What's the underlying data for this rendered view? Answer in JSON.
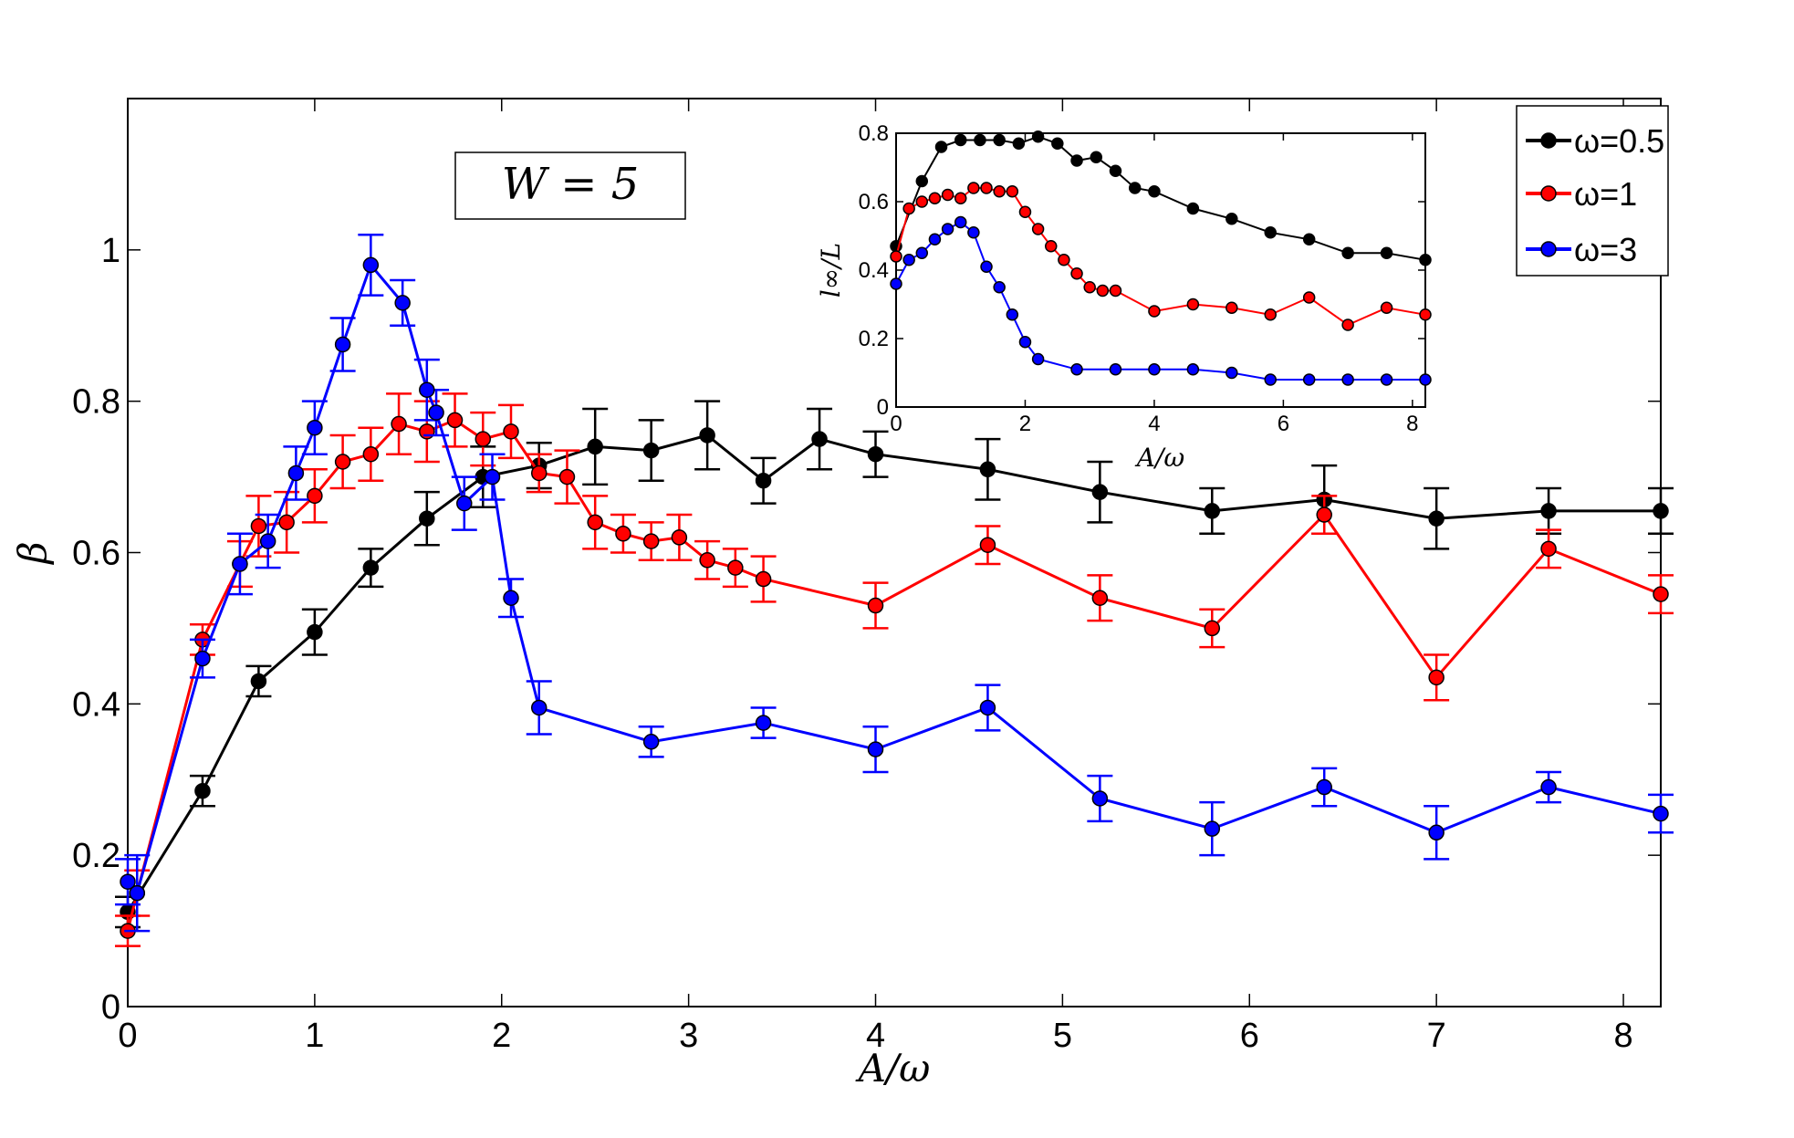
{
  "chart_data": [
    {
      "type": "line",
      "panel": "main",
      "xlabel": "A/ω",
      "ylabel": "β",
      "xlim": [
        0,
        8.2
      ],
      "ylim": [
        0,
        1.2
      ],
      "xticks": [
        0,
        1,
        2,
        3,
        4,
        5,
        6,
        7,
        8
      ],
      "yticks": [
        0,
        0.2,
        0.4,
        0.6,
        0.8,
        1
      ],
      "xtick_labels": [
        "0",
        "1",
        "2",
        "3",
        "4",
        "5",
        "6",
        "7",
        "8"
      ],
      "ytick_labels": [
        "0",
        "0.2",
        "0.4",
        "0.6",
        "0.8",
        "1"
      ],
      "annotation": "W = 5",
      "legend_position": "top-right",
      "series": [
        {
          "name": "ω=0.5",
          "color": "#000000",
          "x": [
            0,
            0.4,
            0.7,
            1.0,
            1.3,
            1.6,
            1.9,
            2.2,
            2.5,
            2.8,
            3.1,
            3.4,
            3.7,
            4.0,
            4.6,
            5.2,
            5.8,
            6.4,
            7.0,
            7.6,
            8.2
          ],
          "values": [
            0.125,
            0.285,
            0.43,
            0.495,
            0.58,
            0.645,
            0.7,
            0.715,
            0.74,
            0.735,
            0.755,
            0.695,
            0.75,
            0.73,
            0.71,
            0.68,
            0.655,
            0.67,
            0.645,
            0.655,
            0.655
          ],
          "errors": [
            0.02,
            0.02,
            0.02,
            0.03,
            0.025,
            0.035,
            0.04,
            0.03,
            0.05,
            0.04,
            0.045,
            0.03,
            0.04,
            0.03,
            0.04,
            0.04,
            0.03,
            0.045,
            0.04,
            0.03,
            0.03
          ]
        },
        {
          "name": "ω=1",
          "color": "#ff0000",
          "x": [
            0,
            0.05,
            0.4,
            0.6,
            0.7,
            0.85,
            1.0,
            1.15,
            1.3,
            1.45,
            1.6,
            1.75,
            1.9,
            2.05,
            2.2,
            2.35,
            2.5,
            2.65,
            2.8,
            2.95,
            3.1,
            3.25,
            3.4,
            4.0,
            4.6,
            5.2,
            5.8,
            6.4,
            7.0,
            7.6,
            8.2
          ],
          "values": [
            0.1,
            0.15,
            0.485,
            0.585,
            0.635,
            0.64,
            0.675,
            0.72,
            0.73,
            0.77,
            0.76,
            0.775,
            0.75,
            0.76,
            0.705,
            0.7,
            0.64,
            0.625,
            0.615,
            0.62,
            0.59,
            0.58,
            0.565,
            0.53,
            0.61,
            0.54,
            0.5,
            0.65,
            0.435,
            0.605,
            0.545
          ],
          "errors": [
            0.02,
            0.03,
            0.02,
            0.03,
            0.04,
            0.04,
            0.035,
            0.035,
            0.035,
            0.04,
            0.04,
            0.035,
            0.035,
            0.035,
            0.025,
            0.035,
            0.035,
            0.025,
            0.025,
            0.03,
            0.025,
            0.025,
            0.03,
            0.03,
            0.025,
            0.03,
            0.025,
            0.025,
            0.03,
            0.025,
            0.025
          ]
        },
        {
          "name": "ω=3",
          "color": "#0000ff",
          "x": [
            0,
            0.05,
            0.4,
            0.6,
            0.75,
            0.9,
            1.0,
            1.15,
            1.3,
            1.47,
            1.6,
            1.65,
            1.8,
            1.95,
            2.05,
            2.2,
            2.8,
            3.4,
            4.0,
            4.6,
            5.2,
            5.8,
            6.4,
            7.0,
            7.6,
            8.2
          ],
          "values": [
            0.165,
            0.15,
            0.46,
            0.585,
            0.615,
            0.705,
            0.765,
            0.875,
            0.98,
            0.93,
            0.815,
            0.785,
            0.665,
            0.7,
            0.54,
            0.395,
            0.35,
            0.375,
            0.34,
            0.395,
            0.275,
            0.235,
            0.29,
            0.23,
            0.29,
            0.255
          ],
          "errors": [
            0.03,
            0.05,
            0.025,
            0.04,
            0.035,
            0.035,
            0.035,
            0.035,
            0.04,
            0.03,
            0.04,
            0.03,
            0.035,
            0.03,
            0.025,
            0.035,
            0.02,
            0.02,
            0.03,
            0.03,
            0.03,
            0.035,
            0.025,
            0.035,
            0.02,
            0.025
          ]
        }
      ]
    },
    {
      "type": "line",
      "panel": "inset",
      "xlabel": "A/ω",
      "ylabel": "l∞/L",
      "xlim": [
        0,
        8.2
      ],
      "ylim": [
        0,
        0.8
      ],
      "xticks": [
        0,
        2,
        4,
        6,
        8
      ],
      "yticks": [
        0,
        0.2,
        0.4,
        0.6,
        0.8
      ],
      "xtick_labels": [
        "0",
        "2",
        "4",
        "6",
        "8"
      ],
      "ytick_labels": [
        "0",
        "0.2",
        "0.4",
        "0.6",
        "0.8"
      ],
      "series": [
        {
          "name": "ω=0.5",
          "color": "#000000",
          "x": [
            0,
            0.4,
            0.7,
            1.0,
            1.3,
            1.6,
            1.9,
            2.2,
            2.5,
            2.8,
            3.1,
            3.4,
            3.7,
            4.0,
            4.6,
            5.2,
            5.8,
            6.4,
            7.0,
            7.6,
            8.2
          ],
          "values": [
            0.47,
            0.66,
            0.76,
            0.78,
            0.78,
            0.78,
            0.77,
            0.79,
            0.77,
            0.72,
            0.73,
            0.69,
            0.64,
            0.63,
            0.58,
            0.55,
            0.51,
            0.49,
            0.45,
            0.45,
            0.43
          ]
        },
        {
          "name": "ω=1",
          "color": "#ff0000",
          "x": [
            0,
            0.2,
            0.4,
            0.6,
            0.8,
            1.0,
            1.2,
            1.4,
            1.6,
            1.8,
            2.0,
            2.2,
            2.4,
            2.6,
            2.8,
            3.0,
            3.2,
            3.4,
            4.0,
            4.6,
            5.2,
            5.8,
            6.4,
            7.0,
            7.6,
            8.2
          ],
          "values": [
            0.44,
            0.58,
            0.6,
            0.61,
            0.62,
            0.61,
            0.64,
            0.64,
            0.63,
            0.63,
            0.57,
            0.52,
            0.47,
            0.43,
            0.39,
            0.35,
            0.34,
            0.34,
            0.28,
            0.3,
            0.29,
            0.27,
            0.32,
            0.24,
            0.29,
            0.27
          ]
        },
        {
          "name": "ω=3",
          "color": "#0000ff",
          "x": [
            0,
            0.2,
            0.4,
            0.6,
            0.8,
            1.0,
            1.2,
            1.4,
            1.6,
            1.8,
            2.0,
            2.2,
            2.8,
            3.4,
            4.0,
            4.6,
            5.2,
            5.8,
            6.4,
            7.0,
            7.6,
            8.2
          ],
          "values": [
            0.36,
            0.43,
            0.45,
            0.49,
            0.52,
            0.54,
            0.51,
            0.41,
            0.35,
            0.27,
            0.19,
            0.14,
            0.11,
            0.11,
            0.11,
            0.11,
            0.1,
            0.08,
            0.08,
            0.08,
            0.08,
            0.08
          ]
        }
      ]
    }
  ],
  "legend": {
    "items": [
      {
        "label": "ω=0.5",
        "color": "#000000"
      },
      {
        "label": "ω=1",
        "color": "#ff0000"
      },
      {
        "label": "ω=3",
        "color": "#0000ff"
      }
    ]
  }
}
